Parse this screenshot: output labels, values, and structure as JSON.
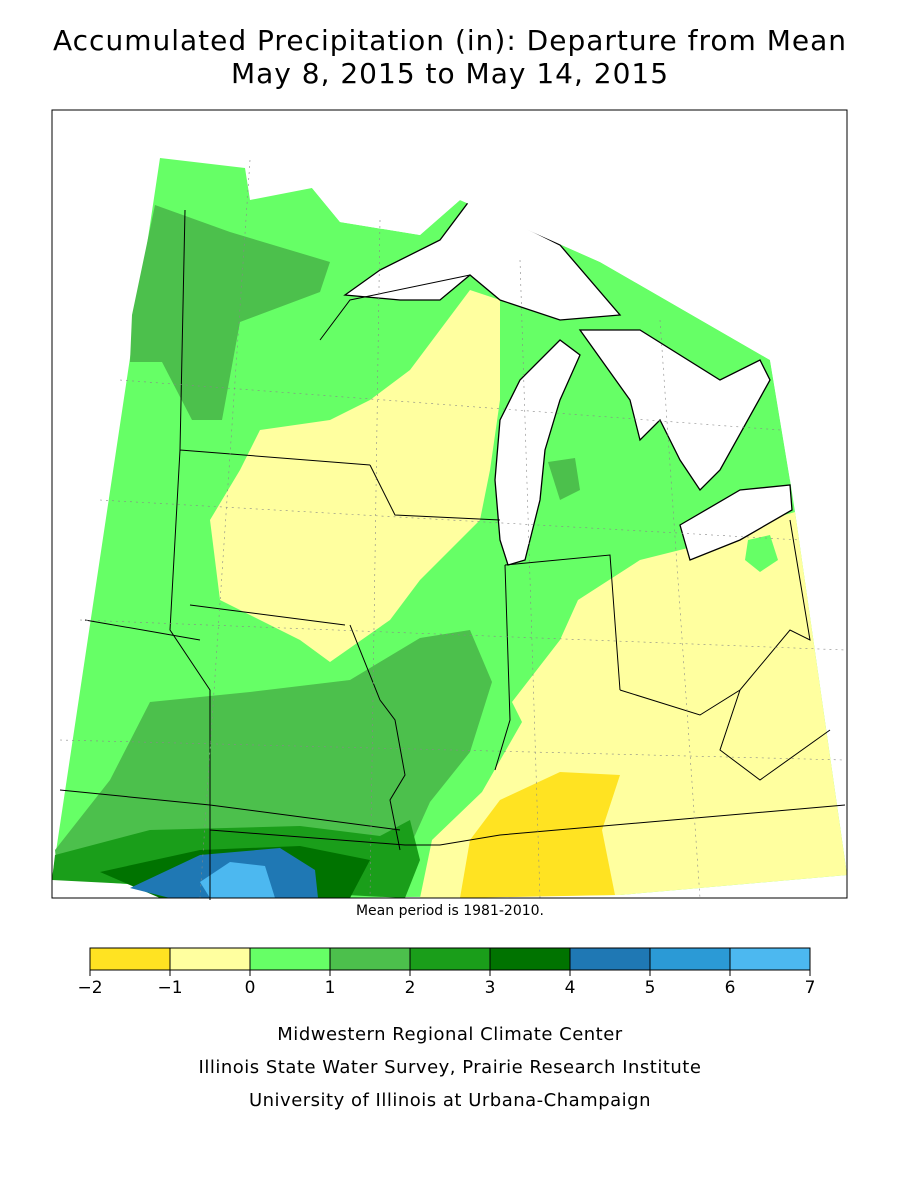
{
  "title": [
    "Accumulated Precipitation (in): Departure from Mean",
    "May 8, 2015 to May 14, 2015"
  ],
  "note": "Mean period is 1981-2010.",
  "legend": {
    "ticks": [
      {
        "value": -2,
        "label": "−2"
      },
      {
        "value": -1,
        "label": "−1"
      },
      0,
      1,
      2,
      3,
      4,
      5,
      6,
      7
    ],
    "colors": [
      "#ffe322",
      "#ffff9f",
      "#66ff66",
      "#4cc04c",
      "#1a9e1a",
      "#007300",
      "#1f78b4",
      "#2b9ad6",
      "#4cb8f0"
    ]
  },
  "credits": [
    "Midwestern Regional Climate Center",
    "Illinois State Water Survey, Prairie Research Institute",
    "University of Illinois at Urbana-Champaign"
  ]
}
